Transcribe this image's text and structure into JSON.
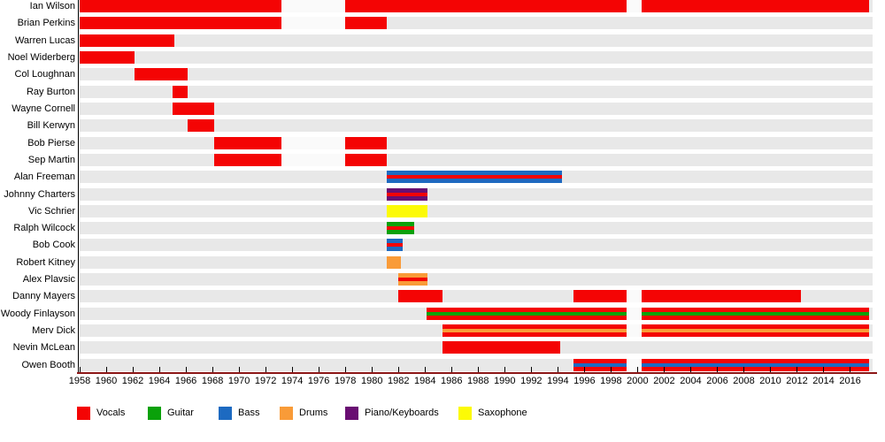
{
  "chart_data": {
    "type": "timeline",
    "description": "Band members timeline; horizontal bars show each member's tenure, bar colors show instrument/role. Striped bars indicate two roles (outer color = first role, center stripe = second role).",
    "x_axis": {
      "start_year": 1958,
      "end_year": 2017.4,
      "tick_step": 2,
      "tick_years": [
        1958,
        1960,
        1962,
        1964,
        1966,
        1968,
        1970,
        1972,
        1974,
        1976,
        1978,
        1980,
        1982,
        1984,
        1986,
        1988,
        1990,
        1992,
        1994,
        1996,
        1998,
        2000,
        2002,
        2004,
        2006,
        2008,
        2010,
        2012,
        2014,
        2016
      ]
    },
    "role_colors": {
      "Vocals": "#f40404",
      "Guitar": "#0aa10a",
      "Bass": "#1d6ac1",
      "Drums": "#f99b38",
      "Piano/Keyboards": "#690d72",
      "Saxophone": "#fcfa06"
    },
    "legend": [
      {
        "label": "Vocals",
        "color": "#f40404"
      },
      {
        "label": "Guitar",
        "color": "#0aa10a"
      },
      {
        "label": "Bass",
        "color": "#1d6ac1"
      },
      {
        "label": "Drums",
        "color": "#f99b38"
      },
      {
        "label": "Piano/Keyboards",
        "color": "#690d72"
      },
      {
        "label": "Saxophone",
        "color": "#fcfa06"
      }
    ],
    "members": [
      {
        "name": "Ian Wilson",
        "roles": [
          "Vocals"
        ],
        "segments": [
          {
            "start": 1958,
            "end": 1973.2
          },
          {
            "start": 1978,
            "end": 1999.2
          },
          {
            "start": 2000.3,
            "end": 2017.4
          }
        ]
      },
      {
        "name": "Brian Perkins",
        "roles": [
          "Vocals"
        ],
        "segments": [
          {
            "start": 1958,
            "end": 1973.2
          },
          {
            "start": 1978,
            "end": 1981.1
          }
        ]
      },
      {
        "name": "Warren Lucas",
        "roles": [
          "Vocals"
        ],
        "segments": [
          {
            "start": 1958,
            "end": 1965.1
          }
        ]
      },
      {
        "name": "Noel Widerberg",
        "roles": [
          "Vocals"
        ],
        "segments": [
          {
            "start": 1958,
            "end": 1962.1
          }
        ]
      },
      {
        "name": "Col Loughnan",
        "roles": [
          "Vocals"
        ],
        "segments": [
          {
            "start": 1962.1,
            "end": 1966.1
          }
        ]
      },
      {
        "name": "Ray Burton",
        "roles": [
          "Vocals"
        ],
        "segments": [
          {
            "start": 1965,
            "end": 1966.1
          }
        ]
      },
      {
        "name": "Wayne Cornell",
        "roles": [
          "Vocals"
        ],
        "segments": [
          {
            "start": 1965,
            "end": 1968.1
          }
        ]
      },
      {
        "name": "Bill Kerwyn",
        "roles": [
          "Vocals"
        ],
        "segments": [
          {
            "start": 1966.1,
            "end": 1968.1
          }
        ]
      },
      {
        "name": "Bob Pierse",
        "roles": [
          "Vocals"
        ],
        "segments": [
          {
            "start": 1968.1,
            "end": 1973.2
          },
          {
            "start": 1978,
            "end": 1981.1
          }
        ]
      },
      {
        "name": "Sep Martin",
        "roles": [
          "Vocals"
        ],
        "segments": [
          {
            "start": 1968.1,
            "end": 1973.2
          },
          {
            "start": 1978,
            "end": 1981.1
          }
        ]
      },
      {
        "name": "Alan Freeman",
        "roles": [
          "Bass",
          "Vocals"
        ],
        "segments": [
          {
            "start": 1981.1,
            "end": 1994.3
          }
        ]
      },
      {
        "name": "Johnny Charters",
        "roles": [
          "Piano/Keyboards",
          "Vocals"
        ],
        "segments": [
          {
            "start": 1981.1,
            "end": 1984.2
          }
        ]
      },
      {
        "name": "Vic Schrier",
        "roles": [
          "Saxophone"
        ],
        "segments": [
          {
            "start": 1981.1,
            "end": 1984.2
          }
        ]
      },
      {
        "name": "Ralph Wilcock",
        "roles": [
          "Guitar",
          "Vocals"
        ],
        "segments": [
          {
            "start": 1981.1,
            "end": 1983.2
          }
        ]
      },
      {
        "name": "Bob Cook",
        "roles": [
          "Bass",
          "Vocals"
        ],
        "segments": [
          {
            "start": 1981.1,
            "end": 1982.3
          }
        ]
      },
      {
        "name": "Robert Kitney",
        "roles": [
          "Drums"
        ],
        "segments": [
          {
            "start": 1981.1,
            "end": 1982.2
          }
        ]
      },
      {
        "name": "Alex Plavsic",
        "roles": [
          "Drums",
          "Vocals"
        ],
        "segments": [
          {
            "start": 1982,
            "end": 1984.2
          }
        ]
      },
      {
        "name": "Danny Mayers",
        "roles": [
          "Vocals"
        ],
        "segments": [
          {
            "start": 1982,
            "end": 1985.3
          },
          {
            "start": 1995.2,
            "end": 1999.2
          },
          {
            "start": 2000.3,
            "end": 2012.3
          }
        ]
      },
      {
        "name": "Woody Finlayson",
        "roles": [
          "Vocals",
          "Guitar"
        ],
        "segments": [
          {
            "start": 1984.1,
            "end": 1999.2
          },
          {
            "start": 2000.3,
            "end": 2017.4
          }
        ]
      },
      {
        "name": "Merv Dick",
        "roles": [
          "Vocals",
          "Drums"
        ],
        "segments": [
          {
            "start": 1985.3,
            "end": 1999.2
          },
          {
            "start": 2000.3,
            "end": 2017.4
          }
        ]
      },
      {
        "name": "Nevin McLean",
        "roles": [
          "Vocals"
        ],
        "segments": [
          {
            "start": 1985.3,
            "end": 1994.2
          }
        ]
      },
      {
        "name": "Owen Booth",
        "roles": [
          "Vocals",
          "Bass"
        ],
        "segments": [
          {
            "start": 1995.2,
            "end": 1999.2
          },
          {
            "start": 2000.3,
            "end": 2017.4
          }
        ]
      }
    ]
  },
  "colors": {
    "row_background": "#e8e8e8",
    "axis_line": "#8c1616",
    "tick": "#000000",
    "left_border": "#000000",
    "gap_fill": "#fafafa"
  }
}
